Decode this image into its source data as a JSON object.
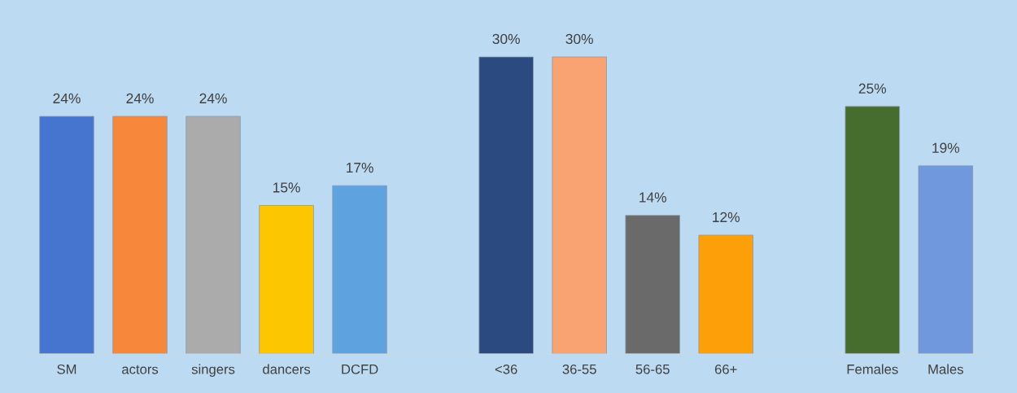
{
  "chart_data": {
    "type": "bar",
    "categories": [
      "SM",
      "actors",
      "singers",
      "dancers",
      "DCFD",
      null,
      "<36",
      "36-55",
      "56-65",
      "66+",
      null,
      "Females",
      "Males"
    ],
    "values": [
      24,
      24,
      24,
      15,
      17,
      null,
      30,
      30,
      14,
      12,
      null,
      25,
      19
    ],
    "value_labels": [
      "24%",
      "24%",
      "24%",
      "15%",
      "17%",
      null,
      "30%",
      "30%",
      "14%",
      "12%",
      null,
      "25%",
      "19%"
    ],
    "colors": [
      "#4675d0",
      "#f7873a",
      "#ababab",
      "#fdc700",
      "#5ea2e0",
      null,
      "#2a4a80",
      "#f9a272",
      "#6a6a6a",
      "#fd9f08",
      null,
      "#476d2e",
      "#7098dc"
    ],
    "grid": false,
    "legend": false
  }
}
